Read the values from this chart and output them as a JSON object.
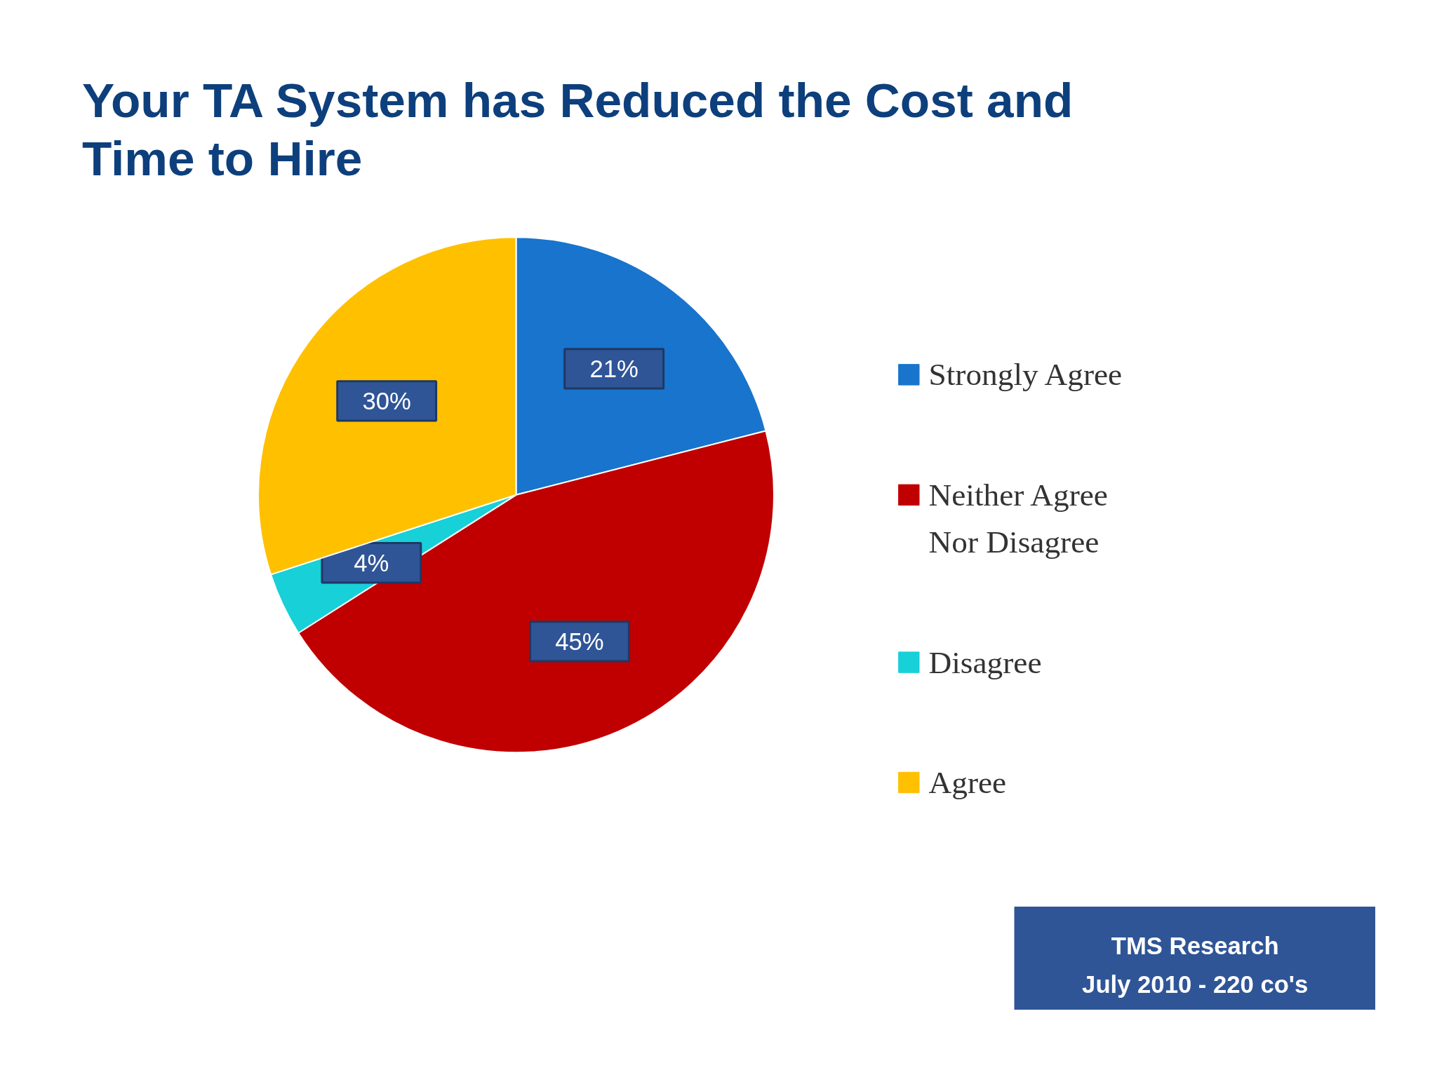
{
  "chart_data": {
    "type": "pie",
    "title": "Your TA System has Reduced the Cost and Time to Hire",
    "categories": [
      "Strongly Agree",
      "Neither Agree Nor Disagree",
      "Disagree",
      "Agree"
    ],
    "values": [
      21,
      45,
      4,
      30
    ],
    "colors": [
      "#1874cd",
      "#c00000",
      "#17d0d8",
      "#ffc000"
    ],
    "value_labels": [
      "21%",
      "45%",
      "4%",
      "30%"
    ],
    "legend": "right",
    "annotations": [
      "TMS Research",
      "July 2010 - 220 co's"
    ]
  }
}
